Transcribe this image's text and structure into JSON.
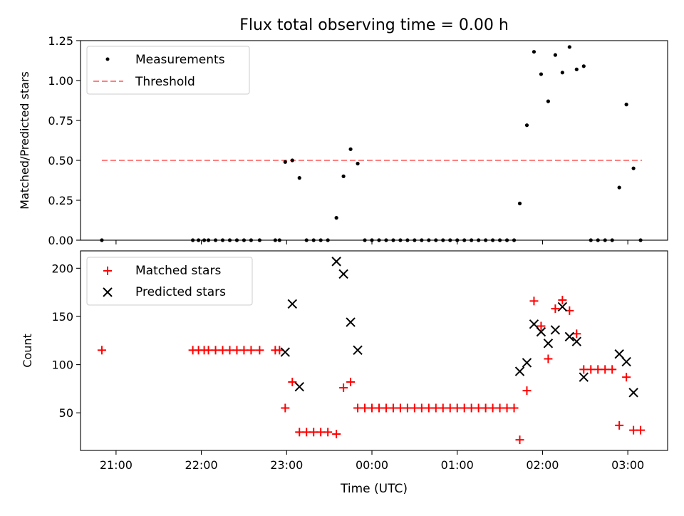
{
  "chart_data": [
    {
      "type": "scatter",
      "title": "Flux total observing time = 0.00 h",
      "ylabel": "Matched/Predicted stars",
      "xlabel": "",
      "xlim": [
        "20:35",
        "03:28"
      ],
      "ylim": [
        0,
        1.25
      ],
      "x_ticks": [
        "21:00",
        "22:00",
        "23:00",
        "00:00",
        "01:00",
        "02:00",
        "03:00"
      ],
      "y_ticks": [
        "0.00",
        "0.25",
        "0.50",
        "0.75",
        "1.00",
        "1.25"
      ],
      "legend_position": "top-left",
      "grid": false,
      "series": [
        {
          "name": "Measurements",
          "marker": "dot",
          "color": "#000000",
          "points": [
            [
              "20:50",
              0.0
            ],
            [
              "21:54",
              0.0
            ],
            [
              "21:58",
              0.0
            ],
            [
              "22:02",
              0.0
            ],
            [
              "22:05",
              0.0
            ],
            [
              "22:10",
              0.0
            ],
            [
              "22:15",
              0.0
            ],
            [
              "22:20",
              0.0
            ],
            [
              "22:25",
              0.0
            ],
            [
              "22:30",
              0.0
            ],
            [
              "22:35",
              0.0
            ],
            [
              "22:41",
              0.0
            ],
            [
              "22:52",
              0.0
            ],
            [
              "22:55",
              0.0
            ],
            [
              "22:59",
              0.49
            ],
            [
              "23:04",
              0.5
            ],
            [
              "23:09",
              0.39
            ],
            [
              "23:14",
              0.0
            ],
            [
              "23:19",
              0.0
            ],
            [
              "23:24",
              0.0
            ],
            [
              "23:29",
              0.0
            ],
            [
              "23:35",
              0.14
            ],
            [
              "23:40",
              0.4
            ],
            [
              "23:45",
              0.57
            ],
            [
              "23:50",
              0.48
            ],
            [
              "23:55",
              0.0
            ],
            [
              "00:00",
              0.0
            ],
            [
              "00:05",
              0.0
            ],
            [
              "00:10",
              0.0
            ],
            [
              "00:15",
              0.0
            ],
            [
              "00:20",
              0.0
            ],
            [
              "00:25",
              0.0
            ],
            [
              "00:30",
              0.0
            ],
            [
              "00:35",
              0.0
            ],
            [
              "00:40",
              0.0
            ],
            [
              "00:45",
              0.0
            ],
            [
              "00:50",
              0.0
            ],
            [
              "00:55",
              0.0
            ],
            [
              "01:00",
              0.0
            ],
            [
              "01:05",
              0.0
            ],
            [
              "01:10",
              0.0
            ],
            [
              "01:15",
              0.0
            ],
            [
              "01:20",
              0.0
            ],
            [
              "01:25",
              0.0
            ],
            [
              "01:30",
              0.0
            ],
            [
              "01:35",
              0.0
            ],
            [
              "01:40",
              0.0
            ],
            [
              "01:44",
              0.23
            ],
            [
              "01:49",
              0.72
            ],
            [
              "01:54",
              1.18
            ],
            [
              "01:59",
              1.04
            ],
            [
              "02:04",
              0.87
            ],
            [
              "02:09",
              1.16
            ],
            [
              "02:14",
              1.05
            ],
            [
              "02:19",
              1.21
            ],
            [
              "02:24",
              1.07
            ],
            [
              "02:29",
              1.09
            ],
            [
              "02:34",
              0.0
            ],
            [
              "02:39",
              0.0
            ],
            [
              "02:44",
              0.0
            ],
            [
              "02:49",
              0.0
            ],
            [
              "02:54",
              0.33
            ],
            [
              "02:59",
              0.85
            ],
            [
              "03:04",
              0.45
            ],
            [
              "03:09",
              0.0
            ]
          ]
        },
        {
          "name": "Threshold",
          "line_style": "dashed",
          "color": "#ff8080",
          "points": [
            [
              "20:50",
              0.5
            ],
            [
              "03:10",
              0.5
            ]
          ]
        }
      ]
    },
    {
      "type": "scatter",
      "title": "",
      "ylabel": "Count",
      "xlabel": "Time (UTC)",
      "xlim": [
        "20:35",
        "03:28"
      ],
      "ylim": [
        11,
        218
      ],
      "x_ticks": [
        "21:00",
        "22:00",
        "23:00",
        "00:00",
        "01:00",
        "02:00",
        "03:00"
      ],
      "y_ticks": [
        "50",
        "100",
        "150",
        "200"
      ],
      "legend_position": "top-left",
      "grid": false,
      "series": [
        {
          "name": "Matched stars",
          "marker": "plus",
          "color": "#ff0000",
          "points": [
            [
              "20:50",
              115
            ],
            [
              "21:54",
              115
            ],
            [
              "21:58",
              115
            ],
            [
              "22:02",
              115
            ],
            [
              "22:05",
              115
            ],
            [
              "22:10",
              115
            ],
            [
              "22:15",
              115
            ],
            [
              "22:20",
              115
            ],
            [
              "22:25",
              115
            ],
            [
              "22:30",
              115
            ],
            [
              "22:35",
              115
            ],
            [
              "22:41",
              115
            ],
            [
              "22:52",
              115
            ],
            [
              "22:55",
              115
            ],
            [
              "22:59",
              55
            ],
            [
              "23:04",
              82
            ],
            [
              "23:09",
              30
            ],
            [
              "23:14",
              30
            ],
            [
              "23:19",
              30
            ],
            [
              "23:24",
              30
            ],
            [
              "23:29",
              30
            ],
            [
              "23:35",
              28
            ],
            [
              "23:40",
              76
            ],
            [
              "23:45",
              82
            ],
            [
              "23:50",
              55
            ],
            [
              "23:55",
              55
            ],
            [
              "00:00",
              55
            ],
            [
              "00:05",
              55
            ],
            [
              "00:10",
              55
            ],
            [
              "00:15",
              55
            ],
            [
              "00:20",
              55
            ],
            [
              "00:25",
              55
            ],
            [
              "00:30",
              55
            ],
            [
              "00:35",
              55
            ],
            [
              "00:40",
              55
            ],
            [
              "00:45",
              55
            ],
            [
              "00:50",
              55
            ],
            [
              "00:55",
              55
            ],
            [
              "01:00",
              55
            ],
            [
              "01:05",
              55
            ],
            [
              "01:10",
              55
            ],
            [
              "01:15",
              55
            ],
            [
              "01:20",
              55
            ],
            [
              "01:25",
              55
            ],
            [
              "01:30",
              55
            ],
            [
              "01:35",
              55
            ],
            [
              "01:40",
              55
            ],
            [
              "01:44",
              22
            ],
            [
              "01:49",
              73
            ],
            [
              "01:54",
              166
            ],
            [
              "01:59",
              140
            ],
            [
              "02:04",
              106
            ],
            [
              "02:09",
              158
            ],
            [
              "02:14",
              167
            ],
            [
              "02:19",
              156
            ],
            [
              "02:24",
              132
            ],
            [
              "02:29",
              95
            ],
            [
              "02:34",
              95
            ],
            [
              "02:39",
              95
            ],
            [
              "02:44",
              95
            ],
            [
              "02:49",
              95
            ],
            [
              "02:54",
              37
            ],
            [
              "02:59",
              87
            ],
            [
              "03:04",
              32
            ],
            [
              "03:09",
              32
            ]
          ]
        },
        {
          "name": "Predicted stars",
          "marker": "x",
          "color": "#000000",
          "points": [
            [
              "22:59",
              113
            ],
            [
              "23:04",
              163
            ],
            [
              "23:09",
              77
            ],
            [
              "23:35",
              207
            ],
            [
              "23:40",
              194
            ],
            [
              "23:45",
              144
            ],
            [
              "23:50",
              115
            ],
            [
              "01:44",
              93
            ],
            [
              "01:49",
              102
            ],
            [
              "01:54",
              142
            ],
            [
              "01:59",
              134
            ],
            [
              "02:04",
              122
            ],
            [
              "02:09",
              136
            ],
            [
              "02:14",
              160
            ],
            [
              "02:19",
              129
            ],
            [
              "02:24",
              124
            ],
            [
              "02:29",
              87
            ],
            [
              "02:54",
              111
            ],
            [
              "02:59",
              103
            ],
            [
              "03:04",
              71
            ]
          ]
        }
      ]
    }
  ]
}
